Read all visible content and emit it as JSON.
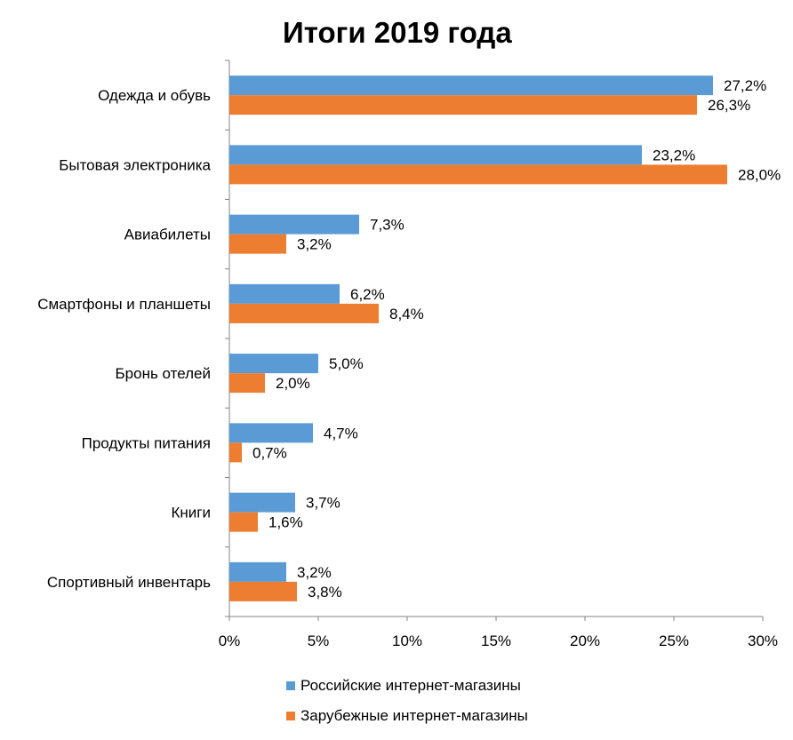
{
  "chart_data": {
    "type": "bar",
    "orientation": "horizontal",
    "title": "Итоги 2019 года",
    "xlabel": "",
    "ylabel": "",
    "xlim": [
      0,
      30
    ],
    "x_ticks": [
      "0%",
      "5%",
      "10%",
      "15%",
      "20%",
      "25%",
      "30%"
    ],
    "x_tick_values": [
      0,
      5,
      10,
      15,
      20,
      25,
      30
    ],
    "grid": false,
    "legend_position": "bottom",
    "categories": [
      "Одежда и обувь",
      "Бытовая электроника",
      "Авиабилеты",
      "Смартфоны и планшеты",
      "Бронь отелей",
      "Продукты питания",
      "Книги",
      "Спортивный инвентарь"
    ],
    "series": [
      {
        "name": "Российские интернет-магазины",
        "color": "#5B9BD5",
        "values": [
          27.2,
          23.2,
          7.3,
          6.2,
          5.0,
          4.7,
          3.7,
          3.2
        ],
        "labels": [
          "27,2%",
          "23,2%",
          "7,3%",
          "6,2%",
          "5,0%",
          "4,7%",
          "3,7%",
          "3,2%"
        ]
      },
      {
        "name": "Зарубежные интернет-магазины",
        "color": "#ED7D31",
        "values": [
          26.3,
          28.0,
          3.2,
          8.4,
          2.0,
          0.7,
          1.6,
          3.8
        ],
        "labels": [
          "26,3%",
          "28,0%",
          "3,2%",
          "8,4%",
          "2,0%",
          "0,7%",
          "1,6%",
          "3,8%"
        ]
      }
    ]
  }
}
